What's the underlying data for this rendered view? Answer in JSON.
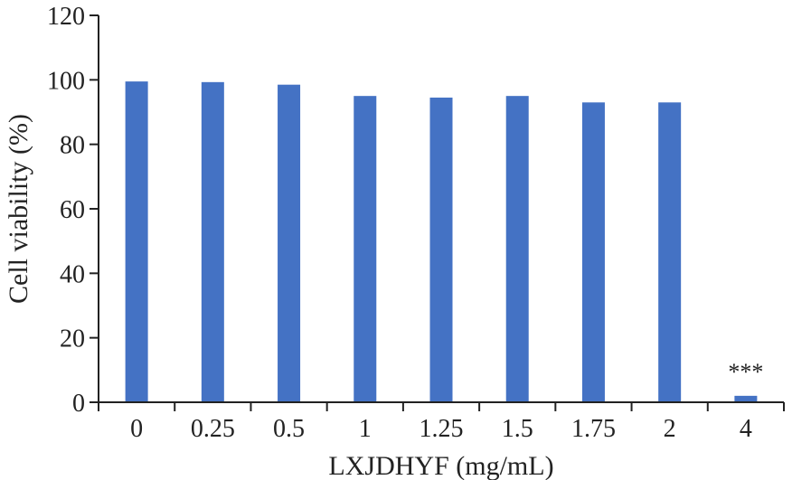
{
  "chart_data": {
    "type": "bar",
    "title": "",
    "xlabel": "LXJDHYF (mg/mL)",
    "ylabel": "Cell viability (%)",
    "categories": [
      "0",
      "0.25",
      "0.5",
      "1",
      "1.25",
      "1.5",
      "1.75",
      "2",
      "4"
    ],
    "values": [
      99.5,
      99.3,
      98.5,
      95.0,
      94.5,
      95.0,
      93.0,
      93.0,
      2.0
    ],
    "ylim": [
      0,
      120
    ],
    "yticks": [
      0,
      20,
      40,
      60,
      80,
      100,
      120
    ],
    "grid": false,
    "bar_color": "#4472C4",
    "annotations": [
      {
        "category": "4",
        "text": "***"
      }
    ]
  }
}
